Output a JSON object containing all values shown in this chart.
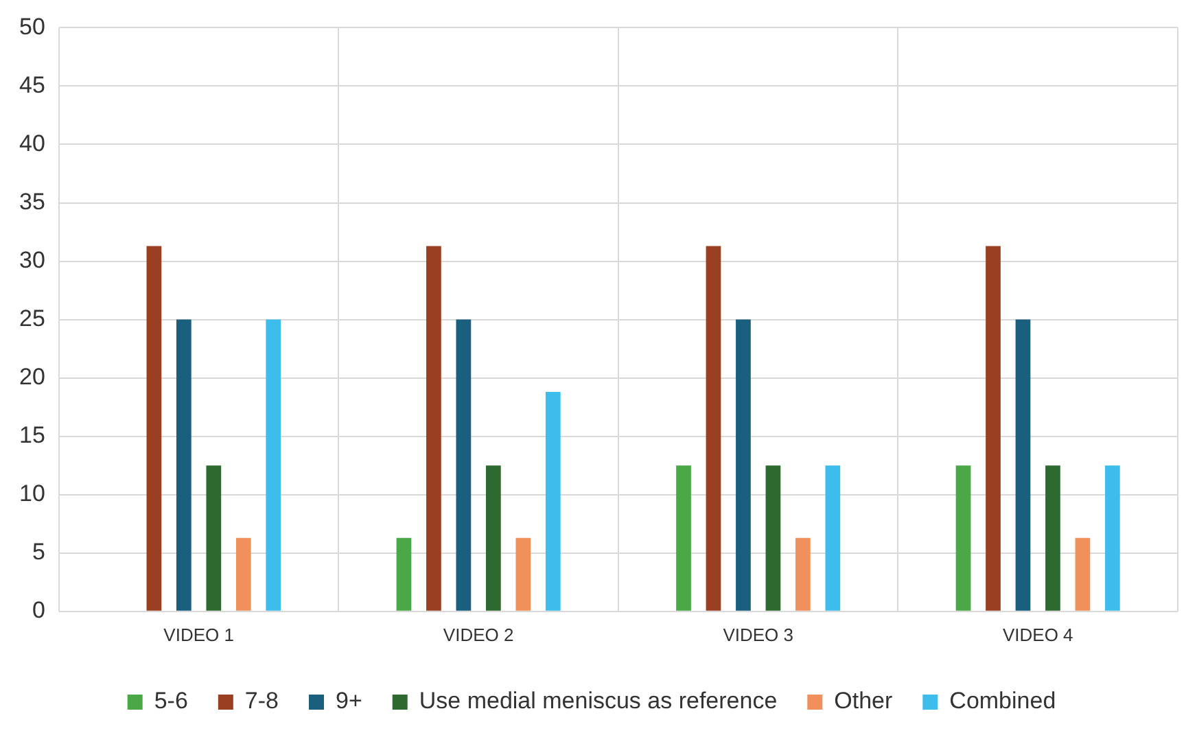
{
  "chart_data": {
    "type": "bar",
    "categories": [
      "VIDEO 1",
      "VIDEO 2",
      "VIDEO 3",
      "VIDEO 4"
    ],
    "series": [
      {
        "name": "5-6",
        "color": "#4aa847",
        "values": [
          0,
          6.3,
          12.5,
          12.5
        ]
      },
      {
        "name": "7-8",
        "color": "#9b3f22",
        "values": [
          31.3,
          31.3,
          31.3,
          31.3
        ]
      },
      {
        "name": "9+",
        "color": "#1b5f7f",
        "values": [
          25,
          25,
          25,
          25
        ]
      },
      {
        "name": "Use medial meniscus as reference",
        "color": "#2e6a30",
        "values": [
          12.5,
          12.5,
          12.5,
          12.5
        ]
      },
      {
        "name": "Other",
        "color": "#f0905c",
        "values": [
          6.3,
          6.3,
          6.3,
          6.3
        ]
      },
      {
        "name": "Combined",
        "color": "#3dbdec",
        "values": [
          25,
          18.8,
          12.5,
          12.5
        ]
      }
    ],
    "ylim": [
      0,
      50
    ],
    "yticks": [
      0,
      5,
      10,
      15,
      20,
      25,
      30,
      35,
      40,
      45,
      50
    ],
    "grid": true,
    "legend": "bottom"
  }
}
